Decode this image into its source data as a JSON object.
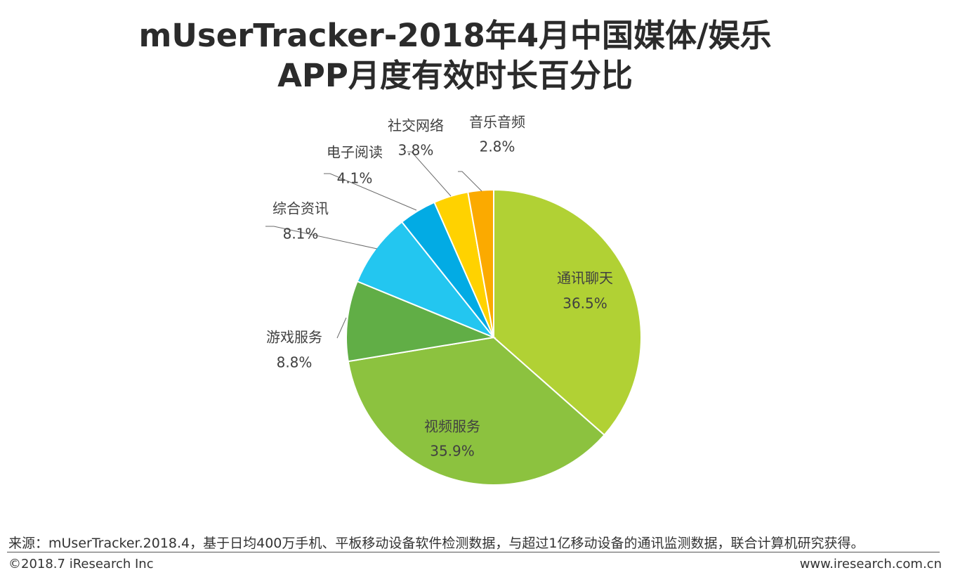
{
  "title": {
    "line1": "mUserTracker-2018年4月中国媒体/娱乐",
    "line2": "APP月度有效时长百分比"
  },
  "chart_data": {
    "type": "pie",
    "unit": "%",
    "slices": [
      {
        "label": "通讯聊天",
        "value": 36.5,
        "value_text": "36.5%",
        "color": "#b1d134"
      },
      {
        "label": "视频服务",
        "value": 35.9,
        "value_text": "35.9%",
        "color": "#8cc23f"
      },
      {
        "label": "游戏服务",
        "value": 8.8,
        "value_text": "8.8%",
        "color": "#61ae46"
      },
      {
        "label": "综合资讯",
        "value": 8.1,
        "value_text": "8.1%",
        "color": "#23c6f0"
      },
      {
        "label": "电子阅读",
        "value": 4.1,
        "value_text": "4.1%",
        "color": "#02abe4"
      },
      {
        "label": "社交网络",
        "value": 3.8,
        "value_text": "3.8%",
        "color": "#ffd200"
      },
      {
        "label": "音乐音频",
        "value": 2.8,
        "value_text": "2.8%",
        "color": "#fbaa00"
      }
    ]
  },
  "footer": {
    "source": "来源：mUserTracker.2018.4，基于日均400万手机、平板移动设备软件检测数据，与超过1亿移动设备的通讯监测数据，联合计算机研究获得。",
    "copyright": "©2018.7 iResearch Inc",
    "website": "www.iresearch.com.cn"
  }
}
